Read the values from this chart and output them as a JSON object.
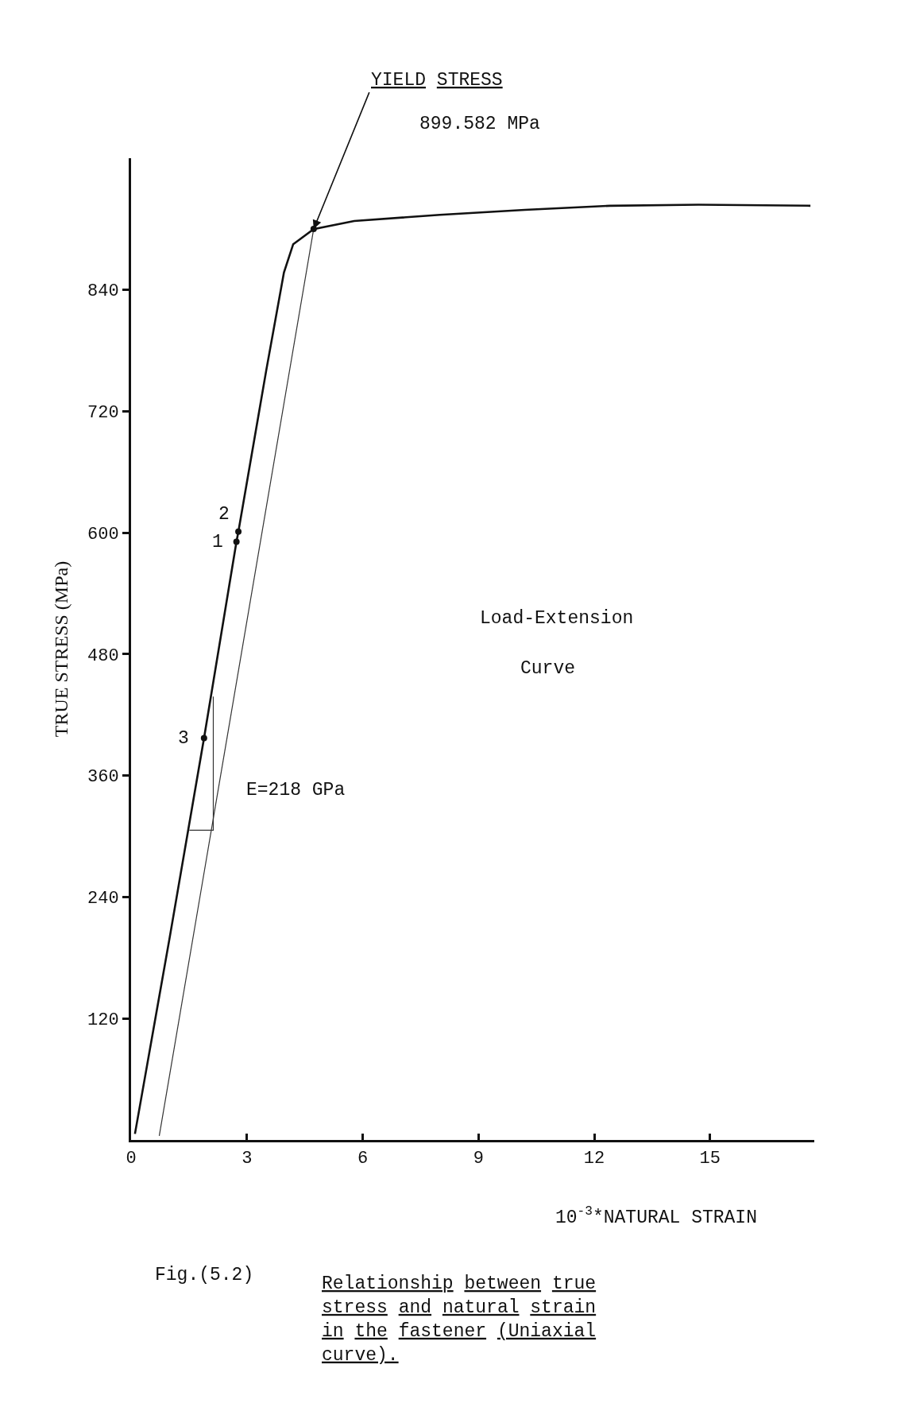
{
  "chart_data": {
    "type": "line",
    "xlabel": "10$^{-3}$*NATURAL STRAIN",
    "ylabel": "TRUE STRESS (MPa)",
    "xlim": [
      0,
      17.7
    ],
    "ylim": [
      0,
      970
    ],
    "xticks": [
      0,
      3,
      6,
      9,
      12,
      15
    ],
    "yticks": [
      120,
      240,
      360,
      480,
      600,
      720,
      840
    ],
    "series": [
      {
        "color": "#111111",
        "marker": "none",
        "x": [
          0.1,
          1.0,
          1.89,
          2.73,
          2.78,
          3.5,
          3.96,
          4.2,
          4.73,
          5.78,
          8.0,
          10.2,
          12.4,
          14.7,
          17.6
        ],
        "values": [
          6,
          200,
          397,
          591,
          601,
          760,
          857,
          885,
          900,
          908,
          914,
          919,
          923,
          924,
          923
        ]
      },
      {
        "color": "#333333",
        "marker": "none",
        "x": [
          0.73,
          4.73
        ],
        "values": [
          4,
          900
        ]
      },
      {
        "color": "#333333",
        "marker": "none",
        "x": [
          1.51,
          2.13,
          2.13
        ],
        "values": [
          306,
          306,
          438
        ]
      },
      {
        "type": "scatter",
        "color": "#111111",
        "marker": "circle",
        "x": [
          1.89,
          2.73,
          2.78,
          4.73
        ],
        "values": [
          397,
          591,
          601,
          900
        ]
      }
    ],
    "annotations": [
      {
        "text": "YIELD STRESS",
        "x": 4.73,
        "y": 900
      },
      "899.582 MPa",
      {
        "text": "1",
        "x": 2.73,
        "y": 591
      },
      {
        "text": "2",
        "x": 2.78,
        "y": 601
      },
      {
        "text": "3",
        "x": 1.89,
        "y": 397
      },
      "E=218 GPa",
      "Load-Extension",
      "Curve",
      "Fig.(5.2)",
      "Relationship between true stress and natural strain in the fastener (Uniaxial curve)."
    ]
  }
}
